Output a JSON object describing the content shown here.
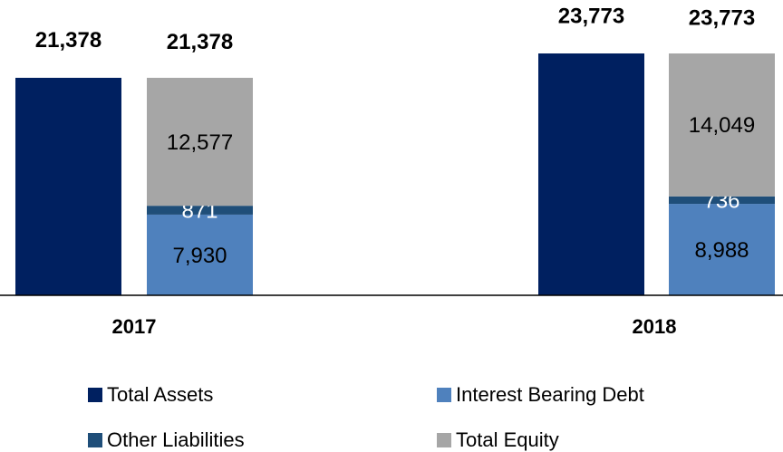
{
  "chart_data": {
    "type": "grouped_stacked_bar",
    "categories": [
      "2017",
      "2018"
    ],
    "series": [
      {
        "name": "Total Assets",
        "color": "#002060",
        "stack": "assets",
        "values": [
          21378,
          23773
        ],
        "value_labels": [
          "21,378",
          "23,773"
        ]
      },
      {
        "name": "Interest Bearing Debt",
        "color": "#4f81bd",
        "stack": "funding",
        "values": [
          7930,
          8988
        ],
        "value_labels": [
          "7,930",
          "8,988"
        ],
        "label_color": "#000000"
      },
      {
        "name": "Other Liabilities",
        "color": "#1f4e79",
        "stack": "funding",
        "values": [
          871,
          736
        ],
        "value_labels": [
          "871",
          "736"
        ],
        "label_color": "#ffffff"
      },
      {
        "name": "Total Equity",
        "color": "#a6a6a6",
        "stack": "funding",
        "values": [
          12577,
          14049
        ],
        "value_labels": [
          "12,577",
          "14,049"
        ],
        "label_color": "#000000"
      }
    ],
    "stack_total_labels": [
      "21,378",
      "23,773"
    ]
  }
}
